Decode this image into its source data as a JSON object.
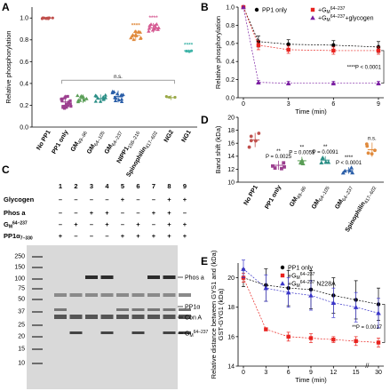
{
  "chart_data": [
    {
      "panel": "A",
      "type": "scatter",
      "ylabel": "Relative phosphorylation",
      "ylim": [
        0,
        1.1
      ],
      "yticks": [
        "0.0",
        "0.2",
        "0.4",
        "0.6",
        "0.8",
        "1.0"
      ],
      "categories": [
        {
          "label": "No PP1",
          "color": "#c0504d",
          "mean": 1.0
        },
        {
          "label": "PP1 only",
          "color": "#9c3f8f",
          "mean": 0.23
        },
        {
          "label": "GM 49–86",
          "color": "#5a9e57",
          "mean": 0.26
        },
        {
          "label": "GM 64–105",
          "color": "#2b8f86",
          "mean": 0.26
        },
        {
          "label": "GM 64–237",
          "color": "#2a5ea8",
          "mean": 0.28
        },
        {
          "label": "NIPP1 158–216",
          "color": "#e08a3c",
          "mean": 0.84
        },
        {
          "label": "Spinophilin 417–602",
          "color": "#d55a92",
          "mean": 0.91
        },
        {
          "label": "NG2",
          "color": "#9aa948",
          "mean": 0.27
        },
        {
          "label": "NG1",
          "color": "#3fb4a8",
          "mean": 0.7
        }
      ],
      "significance": [
        {
          "category": "NIPP1 158–216",
          "label": "****"
        },
        {
          "category": "Spinophilin 417–602",
          "label": "****"
        },
        {
          "category": "NG1",
          "label": "****"
        }
      ],
      "annotation": "n.s."
    },
    {
      "panel": "B",
      "type": "line",
      "xlabel": "Time (min)",
      "ylabel": "Relative phosphorylation",
      "xlim": [
        0,
        9
      ],
      "ylim": [
        0,
        1.0
      ],
      "xticks": [
        "0",
        "3",
        "6",
        "9"
      ],
      "yticks": [
        "0.0",
        "0.2",
        "0.4",
        "0.6",
        "0.8",
        "1.0"
      ],
      "series": [
        {
          "name": "PP1 only",
          "color": "#000000",
          "marker": "circle",
          "x": [
            0,
            1,
            3,
            6,
            9
          ],
          "y": [
            1.0,
            0.62,
            0.59,
            0.58,
            0.56
          ],
          "err": [
            0,
            0.06,
            0.05,
            0.05,
            0.06
          ]
        },
        {
          "name": "+GM 64–237",
          "color": "#e8231f",
          "marker": "square",
          "x": [
            0,
            1,
            3,
            6,
            9
          ],
          "y": [
            1.0,
            0.58,
            0.53,
            0.52,
            0.52
          ],
          "err": [
            0,
            0.05,
            0.04,
            0.04,
            0.04
          ]
        },
        {
          "name": "+GM 64–237+glycogen",
          "color": "#7b1fa2",
          "marker": "triangle",
          "x": [
            0,
            1,
            3,
            6,
            9
          ],
          "y": [
            1.0,
            0.17,
            0.16,
            0.16,
            0.16
          ],
          "err": [
            0,
            0.02,
            0.02,
            0.02,
            0.02
          ]
        }
      ],
      "annotation": "****P < 0.0001"
    },
    {
      "panel": "D",
      "type": "scatter",
      "ylabel": "Band shift (kDa)",
      "ylim": [
        10,
        20
      ],
      "yticks": [
        "10",
        "12",
        "14",
        "16",
        "18",
        "20"
      ],
      "categories": [
        {
          "label": "No PP1",
          "color": "#c0504d",
          "mean": 16.5
        },
        {
          "label": "PP1 only",
          "color": "#9c3f8f",
          "mean": 12.6
        },
        {
          "label": "GM 49–86",
          "color": "#5a9e57",
          "mean": 13.3
        },
        {
          "label": "GM 64–105",
          "color": "#2b8f86",
          "mean": 13.4
        },
        {
          "label": "GM 64–237",
          "color": "#2a5ea8",
          "mean": 11.8
        },
        {
          "label": "Spinophilin 417–602",
          "color": "#e08a3c",
          "mean": 15.0
        }
      ],
      "significance": [
        {
          "category": "PP1 only",
          "label": "**",
          "p": "P = 0.0025"
        },
        {
          "category": "GM 49–86",
          "label": "**",
          "p": "P = 0.0055"
        },
        {
          "category": "GM 64–105",
          "label": "**",
          "p": "P = 0.0091"
        },
        {
          "category": "GM 64–237",
          "label": "****",
          "p": "P < 0.0001"
        },
        {
          "category": "Spinophilin 417–602",
          "label": "n.s."
        }
      ]
    },
    {
      "panel": "E",
      "type": "line",
      "xlabel": "Time (min)",
      "ylabel": "Relative distance between GYS1 and GST-GYG1 (kDa)",
      "xlim": [
        0,
        30
      ],
      "ylim": [
        14,
        21
      ],
      "xticks": [
        "0",
        "3",
        "6",
        "9",
        "12",
        "15",
        "30"
      ],
      "yticks": [
        "14",
        "16",
        "18",
        "20"
      ],
      "series": [
        {
          "name": "PP1 only",
          "color": "#000000",
          "marker": "circle",
          "x": [
            0,
            3,
            6,
            9,
            12,
            15,
            30
          ],
          "y": [
            20.0,
            19.5,
            19.3,
            19.2,
            18.8,
            18.5,
            18.2
          ],
          "err": [
            0.6,
            1.1,
            1.2,
            1.3,
            1.2,
            1.3,
            1.1
          ]
        },
        {
          "name": "+GM 64–237",
          "color": "#e8231f",
          "marker": "square",
          "x": [
            0,
            3,
            6,
            9,
            12,
            15,
            30
          ],
          "y": [
            20.0,
            16.5,
            16.0,
            15.9,
            15.8,
            15.7,
            15.6
          ],
          "err": [
            0.3,
            0.1,
            0.3,
            0.3,
            0.2,
            0.3,
            0.3
          ]
        },
        {
          "name": "+GM 64–237 N228A",
          "color": "#3a35c9",
          "marker": "triangle",
          "x": [
            0,
            3,
            6,
            9,
            12,
            15,
            30
          ],
          "y": [
            20.6,
            19.3,
            19.0,
            18.8,
            18.3,
            18.0,
            17.6
          ],
          "err": [
            0.6,
            0.9,
            1.0,
            1.0,
            1.0,
            1.0,
            1.0
          ]
        }
      ],
      "annotation": "**P = 0.0017"
    }
  ],
  "panel_c": {
    "letter": "C",
    "lanes": [
      "1",
      "2",
      "3",
      "4",
      "5",
      "6",
      "7",
      "8",
      "9"
    ],
    "rows": [
      {
        "label": "Glycogen",
        "marks": [
          "–",
          "–",
          "–",
          "–",
          "+",
          "–",
          "–",
          "+",
          "+"
        ]
      },
      {
        "label": "Phos a",
        "marks": [
          "–",
          "–",
          "+",
          "+",
          "–",
          "–",
          "+",
          "+",
          "–"
        ]
      },
      {
        "label": "GM 64–237",
        "marks": [
          "–",
          "+",
          "–",
          "+",
          "–",
          "+",
          "–",
          "+",
          "+"
        ]
      },
      {
        "label": "PP1α 7–330",
        "marks": [
          "+",
          "–",
          "–",
          "–",
          "+",
          "+",
          "+",
          "+",
          "+"
        ]
      }
    ],
    "markers_kda": [
      "250",
      "150",
      "100",
      "75",
      "50",
      "37",
      "25",
      "20",
      "15",
      "10"
    ],
    "band_labels": [
      "Phos a",
      "PP1α",
      "Con A",
      "GM 64–237"
    ]
  },
  "panel_letters": {
    "a": "A",
    "b": "B",
    "c": "C",
    "d": "D",
    "e": "E"
  }
}
